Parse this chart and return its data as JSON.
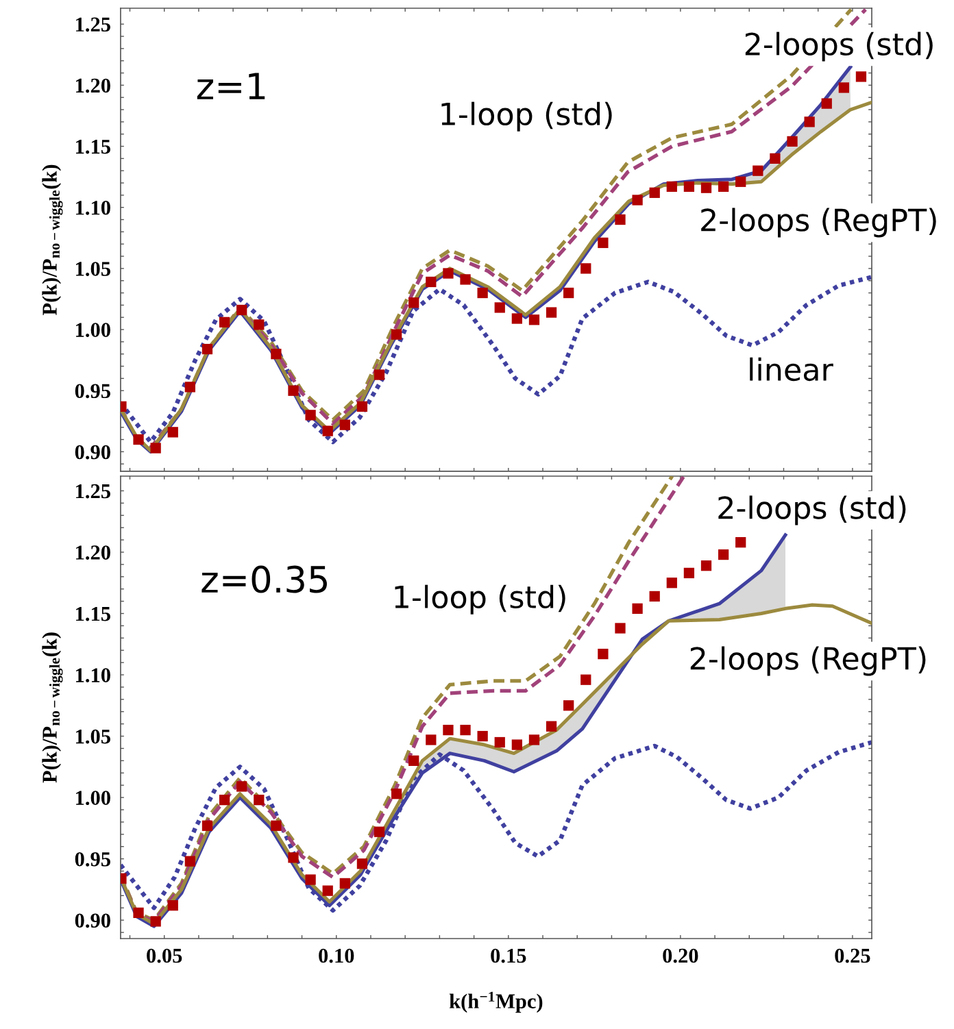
{
  "chart_data": [
    {
      "type": "line",
      "ylabel": "P(k)/P$_{no−wiggle}$(k)",
      "tick_labels": "y",
      "legend": false,
      "grid": false,
      "xlim": [
        0.0373,
        0.2556
      ],
      "ylim": [
        0.884,
        1.263
      ],
      "xticks": [
        {
          "value": 0.04,
          "label": null
        },
        {
          "value": 0.05,
          "label": null
        },
        {
          "value": 0.06,
          "label": null
        },
        {
          "value": 0.07,
          "label": null
        },
        {
          "value": 0.08,
          "label": null
        },
        {
          "value": 0.09,
          "label": null
        },
        {
          "value": 0.1,
          "label": null
        },
        {
          "value": 0.11,
          "label": null
        },
        {
          "value": 0.12,
          "label": null
        },
        {
          "value": 0.13,
          "label": null
        },
        {
          "value": 0.14,
          "label": null
        },
        {
          "value": 0.15,
          "label": null
        },
        {
          "value": 0.16,
          "label": null
        },
        {
          "value": 0.17,
          "label": null
        },
        {
          "value": 0.18,
          "label": null
        },
        {
          "value": 0.19,
          "label": null
        },
        {
          "value": 0.2,
          "label": null
        },
        {
          "value": 0.21,
          "label": null
        },
        {
          "value": 0.22,
          "label": null
        },
        {
          "value": 0.23,
          "label": null
        },
        {
          "value": 0.24,
          "label": null
        },
        {
          "value": 0.25,
          "label": null
        }
      ],
      "yticks": [
        {
          "value": 0.89,
          "label": null
        },
        {
          "value": 0.9,
          "label": "0.90"
        },
        {
          "value": 0.91,
          "label": null
        },
        {
          "value": 0.92,
          "label": null
        },
        {
          "value": 0.93,
          "label": null
        },
        {
          "value": 0.94,
          "label": null
        },
        {
          "value": 0.95,
          "label": "0.95"
        },
        {
          "value": 0.96,
          "label": null
        },
        {
          "value": 0.97,
          "label": null
        },
        {
          "value": 0.98,
          "label": null
        },
        {
          "value": 0.99,
          "label": null
        },
        {
          "value": 1.0,
          "label": "1.00"
        },
        {
          "value": 1.01,
          "label": null
        },
        {
          "value": 1.02,
          "label": null
        },
        {
          "value": 1.03,
          "label": null
        },
        {
          "value": 1.04,
          "label": null
        },
        {
          "value": 1.05,
          "label": "1.05"
        },
        {
          "value": 1.06,
          "label": null
        },
        {
          "value": 1.07,
          "label": null
        },
        {
          "value": 1.08,
          "label": null
        },
        {
          "value": 1.09,
          "label": null
        },
        {
          "value": 1.1,
          "label": "1.10"
        },
        {
          "value": 1.11,
          "label": null
        },
        {
          "value": 1.12,
          "label": null
        },
        {
          "value": 1.13,
          "label": null
        },
        {
          "value": 1.14,
          "label": null
        },
        {
          "value": 1.15,
          "label": "1.15"
        },
        {
          "value": 1.16,
          "label": null
        },
        {
          "value": 1.17,
          "label": null
        },
        {
          "value": 1.18,
          "label": null
        },
        {
          "value": 1.19,
          "label": null
        },
        {
          "value": 1.2,
          "label": "1.20"
        },
        {
          "value": 1.21,
          "label": null
        },
        {
          "value": 1.22,
          "label": null
        },
        {
          "value": 1.23,
          "label": null
        },
        {
          "value": 1.24,
          "label": null
        },
        {
          "value": 1.25,
          "label": "1.25"
        }
      ],
      "annotations": [
        "z=1",
        "1-loop (std)",
        "2-loops (std)",
        "2-loops (RegPT)",
        "linear"
      ],
      "series": [
        {
          "line_style": "dotted",
          "color": "#4040a0",
          "x": [
            0.0373,
            0.046,
            0.0525,
            0.059,
            0.065,
            0.072,
            0.079,
            0.0855,
            0.092,
            0.099,
            0.1068,
            0.1145,
            0.1223,
            0.13,
            0.137,
            0.1456,
            0.152,
            0.1587,
            0.165,
            0.1715,
            0.181,
            0.1906,
            0.198,
            0.2062,
            0.2133,
            0.2209,
            0.2285,
            0.2366,
            0.246,
            0.2556
          ],
          "values": [
            0.94,
            0.908,
            0.932,
            0.975,
            1.008,
            1.025,
            1.007,
            0.968,
            0.926,
            0.908,
            0.928,
            0.965,
            1.015,
            1.033,
            1.02,
            0.987,
            0.96,
            0.947,
            0.962,
            1.009,
            1.03,
            1.039,
            1.031,
            1.013,
            0.995,
            0.987,
            0.998,
            1.02,
            1.036,
            1.043
          ]
        },
        {
          "line_style": "dashed",
          "color": "#9c8b3e",
          "x": [
            0.0373,
            0.042,
            0.046,
            0.055,
            0.063,
            0.072,
            0.081,
            0.09,
            0.099,
            0.108,
            0.117,
            0.125,
            0.133,
            0.144,
            0.154,
            0.1715,
            0.1847,
            0.1976,
            0.2149,
            0.2323,
            0.2496
          ],
          "values": [
            0.936,
            0.91,
            0.903,
            0.935,
            0.985,
            1.018,
            0.99,
            0.95,
            0.926,
            0.95,
            1.005,
            1.05,
            1.065,
            1.052,
            1.032,
            1.089,
            1.137,
            1.157,
            1.168,
            1.208,
            1.262
          ]
        },
        {
          "line_style": "dashed",
          "color": "#a2427a",
          "x": [
            0.0373,
            0.042,
            0.046,
            0.055,
            0.063,
            0.072,
            0.081,
            0.09,
            0.099,
            0.108,
            0.117,
            0.125,
            0.133,
            0.144,
            0.154,
            0.1715,
            0.1847,
            0.1976,
            0.2149,
            0.2323,
            0.2538
          ],
          "values": [
            0.936,
            0.91,
            0.903,
            0.934,
            0.984,
            1.017,
            0.988,
            0.948,
            0.923,
            0.946,
            1.0,
            1.046,
            1.061,
            1.048,
            1.027,
            1.083,
            1.129,
            1.15,
            1.162,
            1.199,
            1.262
          ]
        },
        {
          "line_style": "solid",
          "color": "#4040a0",
          "x": [
            0.0373,
            0.042,
            0.046,
            0.055,
            0.063,
            0.072,
            0.081,
            0.09,
            0.098,
            0.107,
            0.116,
            0.125,
            0.133,
            0.144,
            0.155,
            0.165,
            0.175,
            0.185,
            0.195,
            0.205,
            0.215,
            0.2235,
            0.2323,
            0.2408,
            0.2494
          ],
          "values": [
            0.933,
            0.91,
            0.9,
            0.933,
            0.983,
            1.015,
            0.983,
            0.936,
            0.915,
            0.938,
            0.988,
            1.033,
            1.048,
            1.033,
            1.01,
            1.032,
            1.072,
            1.103,
            1.119,
            1.122,
            1.123,
            1.13,
            1.157,
            1.184,
            1.215
          ]
        },
        {
          "line_style": "solid",
          "color": "#9c8b3e",
          "x": [
            0.0373,
            0.042,
            0.046,
            0.055,
            0.063,
            0.072,
            0.081,
            0.09,
            0.098,
            0.107,
            0.116,
            0.125,
            0.133,
            0.144,
            0.155,
            0.165,
            0.175,
            0.185,
            0.195,
            0.205,
            0.215,
            0.2235,
            0.2323,
            0.2408,
            0.2494,
            0.2556
          ],
          "values": [
            0.935,
            0.912,
            0.901,
            0.935,
            0.985,
            1.017,
            0.985,
            0.938,
            0.917,
            0.94,
            0.99,
            1.035,
            1.05,
            1.035,
            1.012,
            1.035,
            1.075,
            1.105,
            1.118,
            1.12,
            1.119,
            1.121,
            1.143,
            1.162,
            1.18,
            1.186
          ],
          "lower": [
            0.933,
            0.91,
            0.9,
            0.933,
            0.983,
            1.015,
            0.983,
            0.936,
            0.915,
            0.938,
            0.988,
            1.033,
            1.048,
            1.033,
            1.01,
            1.032,
            1.072,
            1.103,
            1.119,
            1.122,
            1.123,
            1.13,
            1.157,
            1.184,
            1.215,
            null
          ],
          "upper": [
            0.935,
            0.912,
            0.901,
            0.935,
            0.985,
            1.017,
            0.985,
            0.938,
            0.917,
            0.94,
            0.99,
            1.035,
            1.05,
            1.035,
            1.012,
            1.035,
            1.075,
            1.105,
            1.118,
            1.12,
            1.119,
            1.121,
            1.143,
            1.162,
            1.18,
            null
          ]
        },
        {
          "type": "scatter",
          "marker": "square",
          "color": "#b00000",
          "x": [
            0.0375,
            0.0425,
            0.0475,
            0.0525,
            0.0575,
            0.0625,
            0.0675,
            0.0725,
            0.0775,
            0.0825,
            0.0875,
            0.0925,
            0.0975,
            0.1025,
            0.1075,
            0.1125,
            0.1175,
            0.1225,
            0.1275,
            0.1325,
            0.1375,
            0.1425,
            0.1475,
            0.1525,
            0.1575,
            0.1625,
            0.1675,
            0.1725,
            0.1775,
            0.1825,
            0.1875,
            0.1925,
            0.1975,
            0.2025,
            0.2075,
            0.2125,
            0.2175,
            0.2225,
            0.2275,
            0.2325,
            0.2375,
            0.2425,
            0.2475,
            0.2525
          ],
          "values": [
            0.937,
            0.91,
            0.903,
            0.916,
            0.953,
            0.984,
            1.006,
            1.016,
            1.004,
            0.98,
            0.95,
            0.93,
            0.917,
            0.922,
            0.937,
            0.963,
            0.996,
            1.022,
            1.039,
            1.046,
            1.041,
            1.03,
            1.018,
            1.009,
            1.008,
            1.014,
            1.03,
            1.05,
            1.071,
            1.09,
            1.106,
            1.112,
            1.117,
            1.117,
            1.116,
            1.117,
            1.121,
            1.13,
            1.14,
            1.154,
            1.17,
            1.185,
            1.198,
            1.207
          ]
        }
      ]
    },
    {
      "type": "line",
      "xlabel": "k(h$^{−1}$Mpc)",
      "ylabel": "P(k)/P$_{no−wiggle}$(k)",
      "legend": false,
      "grid": false,
      "xlim": [
        0.0373,
        0.2556
      ],
      "ylim": [
        0.885,
        1.262
      ],
      "xticks": [
        {
          "value": 0.04,
          "label": null
        },
        {
          "value": 0.05,
          "label": "0.05"
        },
        {
          "value": 0.06,
          "label": null
        },
        {
          "value": 0.07,
          "label": null
        },
        {
          "value": 0.08,
          "label": null
        },
        {
          "value": 0.09,
          "label": null
        },
        {
          "value": 0.1,
          "label": "0.10"
        },
        {
          "value": 0.11,
          "label": null
        },
        {
          "value": 0.12,
          "label": null
        },
        {
          "value": 0.13,
          "label": null
        },
        {
          "value": 0.14,
          "label": null
        },
        {
          "value": 0.15,
          "label": "0.15"
        },
        {
          "value": 0.16,
          "label": null
        },
        {
          "value": 0.17,
          "label": null
        },
        {
          "value": 0.18,
          "label": null
        },
        {
          "value": 0.19,
          "label": null
        },
        {
          "value": 0.2,
          "label": "0.20"
        },
        {
          "value": 0.21,
          "label": null
        },
        {
          "value": 0.22,
          "label": null
        },
        {
          "value": 0.23,
          "label": null
        },
        {
          "value": 0.24,
          "label": null
        },
        {
          "value": 0.25,
          "label": "0.25"
        }
      ],
      "yticks": [
        {
          "value": 0.89,
          "label": null
        },
        {
          "value": 0.9,
          "label": "0.90"
        },
        {
          "value": 0.91,
          "label": null
        },
        {
          "value": 0.92,
          "label": null
        },
        {
          "value": 0.93,
          "label": null
        },
        {
          "value": 0.94,
          "label": null
        },
        {
          "value": 0.95,
          "label": "0.95"
        },
        {
          "value": 0.96,
          "label": null
        },
        {
          "value": 0.97,
          "label": null
        },
        {
          "value": 0.98,
          "label": null
        },
        {
          "value": 0.99,
          "label": null
        },
        {
          "value": 1.0,
          "label": "1.00"
        },
        {
          "value": 1.01,
          "label": null
        },
        {
          "value": 1.02,
          "label": null
        },
        {
          "value": 1.03,
          "label": null
        },
        {
          "value": 1.04,
          "label": null
        },
        {
          "value": 1.05,
          "label": "1.05"
        },
        {
          "value": 1.06,
          "label": null
        },
        {
          "value": 1.07,
          "label": null
        },
        {
          "value": 1.08,
          "label": null
        },
        {
          "value": 1.09,
          "label": null
        },
        {
          "value": 1.1,
          "label": "1.10"
        },
        {
          "value": 1.11,
          "label": null
        },
        {
          "value": 1.12,
          "label": null
        },
        {
          "value": 1.13,
          "label": null
        },
        {
          "value": 1.14,
          "label": null
        },
        {
          "value": 1.15,
          "label": "1.15"
        },
        {
          "value": 1.16,
          "label": null
        },
        {
          "value": 1.17,
          "label": null
        },
        {
          "value": 1.18,
          "label": null
        },
        {
          "value": 1.19,
          "label": null
        },
        {
          "value": 1.2,
          "label": "1.20"
        },
        {
          "value": 1.21,
          "label": null
        },
        {
          "value": 1.22,
          "label": null
        },
        {
          "value": 1.23,
          "label": null
        },
        {
          "value": 1.24,
          "label": null
        },
        {
          "value": 1.25,
          "label": "1.25"
        }
      ],
      "annotations": [
        "z=0.35",
        "1-loop (std)",
        "2-loops (std)",
        "2-loops (RegPT)"
      ],
      "series": [
        {
          "line_style": "dotted",
          "color": "#4040a0",
          "x": [
            0.0373,
            0.047,
            0.053,
            0.059,
            0.065,
            0.072,
            0.079,
            0.0855,
            0.092,
            0.099,
            0.1068,
            0.1145,
            0.1223,
            0.13,
            0.137,
            0.1456,
            0.152,
            0.1586,
            0.165,
            0.1715,
            0.181,
            0.1925,
            0.199,
            0.2062,
            0.2133,
            0.2203,
            0.2285,
            0.2366,
            0.246,
            0.2556
          ],
          "values": [
            0.945,
            0.91,
            0.935,
            0.975,
            1.008,
            1.025,
            1.007,
            0.968,
            0.926,
            0.908,
            0.928,
            0.965,
            1.015,
            1.035,
            1.022,
            0.99,
            0.963,
            0.952,
            0.965,
            1.01,
            1.032,
            1.042,
            1.033,
            1.016,
            0.998,
            0.991,
            1.0,
            1.022,
            1.037,
            1.045
          ]
        },
        {
          "line_style": "dashed",
          "color": "#9c8b3e",
          "x": [
            0.0373,
            0.042,
            0.047,
            0.055,
            0.063,
            0.072,
            0.081,
            0.09,
            0.099,
            0.108,
            0.117,
            0.125,
            0.133,
            0.1456,
            0.155,
            0.165,
            0.175,
            0.185,
            0.1976
          ],
          "values": [
            0.937,
            0.906,
            0.9,
            0.93,
            0.985,
            1.016,
            0.99,
            0.955,
            0.938,
            0.96,
            1.01,
            1.065,
            1.092,
            1.095,
            1.095,
            1.115,
            1.158,
            1.208,
            1.262
          ]
        },
        {
          "line_style": "dashed",
          "color": "#a2427a",
          "x": [
            0.0373,
            0.042,
            0.047,
            0.055,
            0.063,
            0.072,
            0.081,
            0.09,
            0.099,
            0.108,
            0.117,
            0.125,
            0.133,
            0.1456,
            0.155,
            0.165,
            0.175,
            0.185,
            0.201
          ],
          "values": [
            0.936,
            0.905,
            0.899,
            0.928,
            0.982,
            1.013,
            0.988,
            0.952,
            0.935,
            0.957,
            1.005,
            1.058,
            1.085,
            1.087,
            1.087,
            1.108,
            1.148,
            1.193,
            1.262
          ]
        },
        {
          "line_style": "solid",
          "color": "#4040a0",
          "x": [
            0.0373,
            0.042,
            0.047,
            0.055,
            0.063,
            0.072,
            0.081,
            0.09,
            0.098,
            0.107,
            0.116,
            0.125,
            0.133,
            0.143,
            0.1516,
            0.164,
            0.1715,
            0.1889,
            0.1966,
            0.2113,
            0.2235,
            0.2305
          ],
          "values": [
            0.933,
            0.903,
            0.895,
            0.922,
            0.972,
            1.0,
            0.975,
            0.934,
            0.912,
            0.937,
            0.98,
            1.02,
            1.036,
            1.03,
            1.021,
            1.038,
            1.056,
            1.129,
            1.144,
            1.158,
            1.185,
            1.214
          ]
        },
        {
          "line_style": "solid",
          "color": "#9c8b3e",
          "x": [
            0.0373,
            0.042,
            0.047,
            0.055,
            0.063,
            0.072,
            0.081,
            0.09,
            0.098,
            0.107,
            0.116,
            0.125,
            0.133,
            0.143,
            0.1516,
            0.164,
            0.1715,
            0.1889,
            0.1966,
            0.2113,
            0.2235,
            0.2305,
            0.2383,
            0.2442,
            0.2556
          ],
          "values": [
            0.935,
            0.905,
            0.897,
            0.925,
            0.975,
            1.003,
            0.978,
            0.937,
            0.915,
            0.94,
            0.985,
            1.03,
            1.048,
            1.043,
            1.036,
            1.055,
            1.076,
            1.125,
            1.144,
            1.145,
            1.15,
            1.154,
            1.157,
            1.156,
            1.142
          ],
          "lower": [
            0.933,
            0.903,
            0.895,
            0.922,
            0.972,
            1.0,
            0.975,
            0.934,
            0.912,
            0.937,
            0.98,
            1.02,
            1.036,
            1.03,
            1.021,
            1.038,
            1.056,
            1.129,
            1.144,
            1.158,
            1.185,
            1.214,
            null,
            null,
            null
          ],
          "upper": [
            0.935,
            0.905,
            0.897,
            0.925,
            0.975,
            1.003,
            0.978,
            0.937,
            0.915,
            0.94,
            0.985,
            1.03,
            1.048,
            1.043,
            1.036,
            1.055,
            1.076,
            1.125,
            1.144,
            1.145,
            1.15,
            1.154,
            null,
            null,
            null
          ]
        },
        {
          "type": "scatter",
          "marker": "square",
          "color": "#b00000",
          "x": [
            0.0375,
            0.0425,
            0.0475,
            0.0525,
            0.0575,
            0.0625,
            0.0675,
            0.0725,
            0.0775,
            0.0825,
            0.0875,
            0.0925,
            0.0975,
            0.1025,
            0.1075,
            0.1125,
            0.1175,
            0.1225,
            0.1275,
            0.1325,
            0.1375,
            0.1425,
            0.1475,
            0.1525,
            0.1575,
            0.1625,
            0.1675,
            0.1725,
            0.1775,
            0.1825,
            0.1875,
            0.1925,
            0.1975,
            0.2025,
            0.2075,
            0.2125,
            0.2175
          ],
          "values": [
            0.934,
            0.906,
            0.899,
            0.912,
            0.948,
            0.977,
            0.998,
            1.009,
            0.998,
            0.977,
            0.951,
            0.933,
            0.924,
            0.93,
            0.946,
            0.972,
            1.003,
            1.03,
            1.047,
            1.055,
            1.055,
            1.05,
            1.045,
            1.043,
            1.047,
            1.058,
            1.075,
            1.096,
            1.117,
            1.138,
            1.154,
            1.164,
            1.175,
            1.183,
            1.189,
            1.198,
            1.208
          ]
        }
      ]
    }
  ]
}
